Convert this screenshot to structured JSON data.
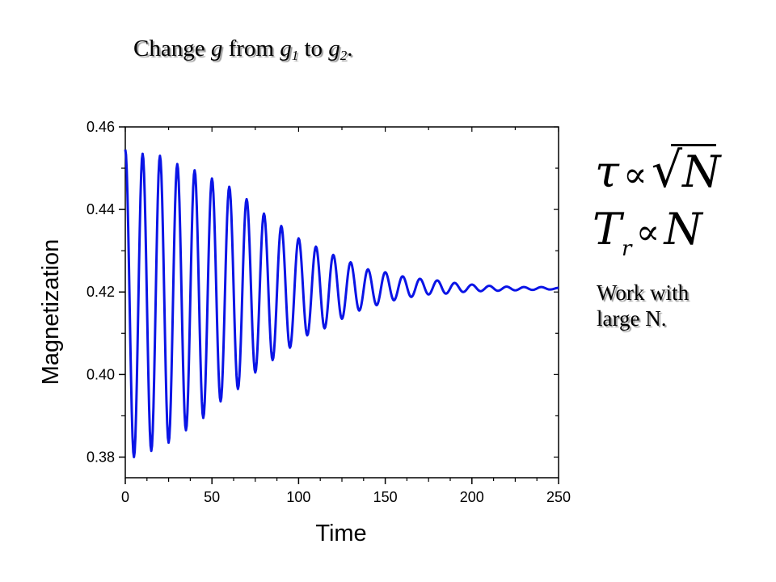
{
  "slide": {
    "title_parts": {
      "t1": "Change ",
      "t2": "g",
      "t3": " from ",
      "t4": "g",
      "t5": "1",
      "t6": " to ",
      "t7": "g",
      "t8": "2",
      "t9": "."
    },
    "note_lines": [
      "Work with",
      "large N."
    ],
    "formula1": {
      "lhs": "τ",
      "op": "∝",
      "radical": "√",
      "rhs": "N"
    },
    "formula2": {
      "lhs": "T",
      "sub": "r",
      "op": "∝",
      "rhs": "N"
    }
  },
  "chart_data": {
    "type": "line",
    "xlabel": "Time",
    "ylabel": "Magnetization",
    "xlim": [
      0,
      250
    ],
    "ylim": [
      0.375,
      0.46
    ],
    "xticks": [
      "0",
      "50",
      "100",
      "150",
      "200",
      "250"
    ],
    "yticks": [
      "0.38",
      "0.40",
      "0.42",
      "0.44",
      "0.46"
    ],
    "xtick_values": [
      0,
      50,
      100,
      150,
      200,
      250
    ],
    "ytick_values": [
      0.38,
      0.4,
      0.42,
      0.44,
      0.46
    ],
    "series": [
      {
        "color": "#0a14e6",
        "description_points": {
          "peaks": [
            [
              0,
              0.4545
            ],
            [
              10,
              0.4535
            ],
            [
              20,
              0.453
            ],
            [
              30,
              0.451
            ],
            [
              40,
              0.4495
            ],
            [
              50,
              0.4475
            ],
            [
              60,
              0.4455
            ],
            [
              70,
              0.4425
            ],
            [
              80,
              0.439
            ],
            [
              90,
              0.436
            ],
            [
              100,
              0.433
            ],
            [
              110,
              0.431
            ],
            [
              120,
              0.429
            ],
            [
              130,
              0.4272
            ],
            [
              140,
              0.4255
            ],
            [
              150,
              0.4248
            ],
            [
              160,
              0.4238
            ],
            [
              170,
              0.4232
            ],
            [
              180,
              0.4228
            ],
            [
              190,
              0.4222
            ],
            [
              200,
              0.4218
            ],
            [
              210,
              0.4215
            ],
            [
              220,
              0.4213
            ],
            [
              230,
              0.4212
            ],
            [
              240,
              0.4212
            ],
            [
              250,
              0.421
            ]
          ],
          "troughs": [
            [
              5,
              0.38
            ],
            [
              15,
              0.3815
            ],
            [
              25,
              0.3835
            ],
            [
              35,
              0.3865
            ],
            [
              45,
              0.3895
            ],
            [
              55,
              0.3935
            ],
            [
              65,
              0.3965
            ],
            [
              75,
              0.4005
            ],
            [
              85,
              0.4035
            ],
            [
              95,
              0.4065
            ],
            [
              105,
              0.4095
            ],
            [
              115,
              0.4112
            ],
            [
              125,
              0.4135
            ],
            [
              135,
              0.4155
            ],
            [
              145,
              0.4168
            ],
            [
              155,
              0.418
            ],
            [
              165,
              0.4188
            ],
            [
              175,
              0.4194
            ],
            [
              185,
              0.4196
            ],
            [
              195,
              0.42
            ],
            [
              205,
              0.4202
            ],
            [
              215,
              0.4203
            ],
            [
              225,
              0.4204
            ],
            [
              235,
              0.4205
            ],
            [
              245,
              0.4206
            ]
          ]
        }
      }
    ]
  }
}
